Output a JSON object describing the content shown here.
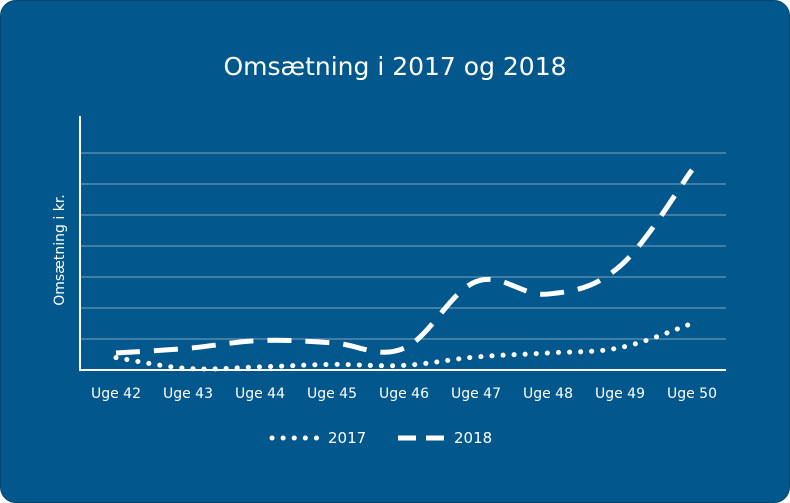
{
  "chart_data": {
    "type": "line",
    "title": "Omsætning i 2017 og 2018",
    "xlabel": "",
    "ylabel": "Omsætning i kr.",
    "categories": [
      "Uge 42",
      "Uge 43",
      "Uge 44",
      "Uge 45",
      "Uge 46",
      "Uge 47",
      "Uge 48",
      "Uge 49",
      "Uge 50"
    ],
    "ylim": [
      0,
      8
    ],
    "grid": true,
    "legend": "bottom-center",
    "series": [
      {
        "name": "2017",
        "style": "dotted",
        "color": "#ffffff",
        "values": [
          0.4,
          0.05,
          0.1,
          0.18,
          0.15,
          0.42,
          0.55,
          0.72,
          1.5
        ]
      },
      {
        "name": "2018",
        "style": "dashed",
        "color": "#ffffff",
        "values": [
          0.55,
          0.7,
          0.95,
          0.88,
          0.7,
          2.85,
          2.45,
          3.35,
          6.45
        ]
      }
    ]
  }
}
